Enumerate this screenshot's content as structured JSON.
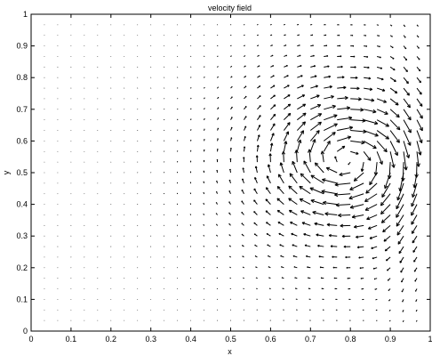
{
  "chart_data": {
    "type": "quiver",
    "title": "velocity field",
    "xlabel": "x",
    "ylabel": "y",
    "xlim": [
      0,
      1
    ],
    "ylim": [
      0,
      1
    ],
    "grid": false,
    "legend": "none",
    "arrow_color": "#000000",
    "x_ticks": [
      "0",
      "0.1",
      "0.2",
      "0.3",
      "0.4",
      "0.5",
      "0.6",
      "0.7",
      "0.8",
      "0.9",
      "1"
    ],
    "y_ticks": [
      "0",
      "0.1",
      "0.2",
      "0.3",
      "0.4",
      "0.5",
      "0.6",
      "0.7",
      "0.8",
      "0.9",
      "1"
    ],
    "grid_spacing": 0.033333,
    "grid_count": 29,
    "vortex_center": [
      0.79,
      0.54
    ],
    "vortex_sense": "clockwise",
    "max_arrow_length": 0.06
  }
}
